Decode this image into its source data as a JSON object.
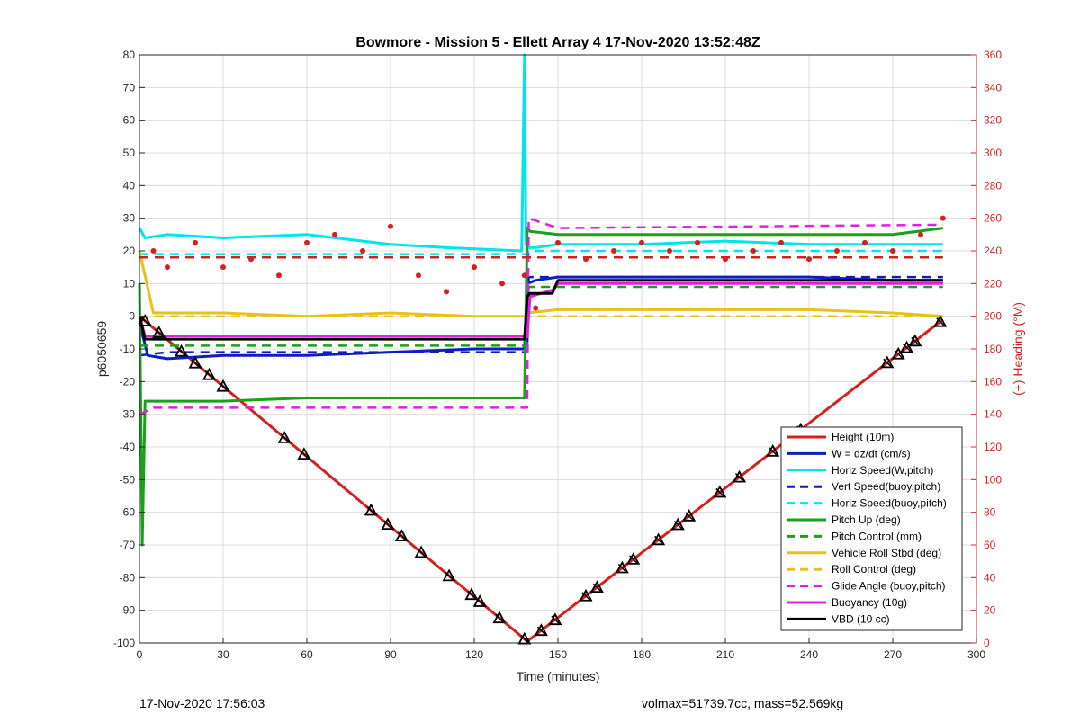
{
  "chart_data": {
    "type": "line",
    "title": "Bowmore - Mission 5 - Ellett Array 4 17-Nov-2020 13:52:48Z",
    "xlabel": "Time (minutes)",
    "ylabel_left": "p6050659",
    "ylabel_right": "(+) Heading (°M)",
    "xlim": [
      0,
      300
    ],
    "ylim_left": [
      -100,
      80
    ],
    "ylim_right": [
      0,
      360
    ],
    "xticks": [
      0,
      30,
      60,
      90,
      120,
      150,
      180,
      210,
      240,
      270,
      300
    ],
    "yticks_left": [
      80,
      70,
      60,
      50,
      40,
      30,
      20,
      10,
      0,
      -10,
      -20,
      -30,
      -40,
      -50,
      -60,
      -70,
      -80,
      -90,
      -100
    ],
    "yticks_right": [
      360,
      340,
      320,
      300,
      280,
      260,
      240,
      220,
      200,
      180,
      160,
      140,
      120,
      100,
      80,
      60,
      40,
      20,
      0
    ],
    "grid": true,
    "legend_position": "bottom-right",
    "series": [
      {
        "name": "Height (10m)",
        "color": "#d62020",
        "style": "solid",
        "x": [
          0,
          139,
          288
        ],
        "y": [
          0,
          -99.5,
          -1
        ]
      },
      {
        "name": "W = dz/dt (cm/s)",
        "color": "#0a1fc0",
        "style": "solid",
        "x": [
          0,
          3,
          10,
          30,
          60,
          90,
          120,
          138,
          139,
          142,
          150,
          180,
          210,
          240,
          270,
          288
        ],
        "y": [
          -2,
          -12,
          -13,
          -12,
          -12,
          -11,
          -10,
          -10,
          10,
          11,
          12,
          12,
          12,
          12,
          11,
          11
        ]
      },
      {
        "name": "Horiz Speed(W,pitch)",
        "color": "#00e6e6",
        "style": "solid",
        "x": [
          0,
          2,
          10,
          30,
          60,
          90,
          110,
          137,
          138,
          138.5,
          139,
          142,
          150,
          180,
          210,
          240,
          270,
          288
        ],
        "y": [
          27,
          24,
          25,
          24,
          25,
          22,
          21,
          20,
          80,
          22,
          21,
          21,
          22,
          22,
          23,
          22,
          22,
          22
        ]
      },
      {
        "name": "Vert Speed(buoy,pitch)",
        "color": "#0a1fc0",
        "style": "dashed",
        "x": [
          0,
          10,
          139,
          139.5,
          150,
          288
        ],
        "y": [
          -12,
          -11,
          -11,
          12,
          12,
          12
        ]
      },
      {
        "name": "Horiz Speed(buoy,pitch)",
        "color": "#00e6e6",
        "style": "dashed",
        "x": [
          0,
          139,
          139.5,
          288
        ],
        "y": [
          19,
          19,
          20,
          20
        ]
      },
      {
        "name": "Pitch Up (deg)",
        "color": "#1aa01a",
        "style": "solid",
        "x": [
          0,
          1,
          2,
          5,
          30,
          60,
          90,
          120,
          138,
          139,
          140,
          150,
          180,
          210,
          240,
          270,
          288
        ],
        "y": [
          10,
          -70,
          -26,
          -26,
          -26,
          -25,
          -25,
          -25,
          -25,
          27,
          26,
          25,
          25,
          25,
          25,
          25,
          27
        ]
      },
      {
        "name": "Pitch Control (mm)",
        "color": "#1aa01a",
        "style": "dashed",
        "x": [
          0,
          139,
          139.5,
          288
        ],
        "y": [
          -9,
          -9,
          9,
          9
        ]
      },
      {
        "name": "Vehicle Roll Stbd (deg)",
        "color": "#e6c31a",
        "style": "solid",
        "x": [
          0,
          5,
          10,
          30,
          60,
          90,
          120,
          138,
          139,
          150,
          180,
          210,
          240,
          270,
          288
        ],
        "y": [
          20,
          1,
          1,
          1,
          0,
          1,
          0,
          0,
          1,
          2,
          2,
          2,
          2,
          1,
          0
        ]
      },
      {
        "name": "Roll Control (deg)",
        "color": "#e6c31a",
        "style": "dashed",
        "x": [
          0,
          139,
          150,
          288
        ],
        "y": [
          0,
          0,
          0,
          0
        ]
      },
      {
        "name": "Glide Angle (buoy,pitch)",
        "color": "#e020e0",
        "style": "dashed",
        "x": [
          0,
          5,
          139,
          139.5,
          150,
          288
        ],
        "y": [
          -30,
          -28,
          -28,
          30,
          27,
          28
        ]
      },
      {
        "name": "Buoyancy (10g)",
        "color": "#e020e0",
        "style": "solid",
        "x": [
          0,
          2,
          139,
          140,
          148,
          150,
          288
        ],
        "y": [
          0,
          -6,
          -6,
          6,
          8,
          10,
          10
        ]
      },
      {
        "name": "VBD (10 cc)",
        "color": "#000000",
        "style": "solid",
        "x": [
          0,
          2,
          138,
          139,
          140,
          148,
          150,
          288
        ],
        "y": [
          0,
          -7,
          -7,
          6,
          7,
          7,
          11,
          11
        ]
      },
      {
        "name": "Heading",
        "axis": "right",
        "color": "#d62020",
        "style": "points",
        "x": [
          5,
          10,
          20,
          30,
          40,
          50,
          60,
          70,
          80,
          90,
          100,
          110,
          120,
          130,
          138,
          142,
          150,
          160,
          170,
          180,
          190,
          200,
          210,
          220,
          230,
          240,
          250,
          260,
          270,
          280,
          288
        ],
        "y": [
          240,
          230,
          245,
          230,
          235,
          225,
          245,
          250,
          240,
          255,
          225,
          215,
          230,
          220,
          225,
          205,
          245,
          235,
          240,
          245,
          240,
          245,
          235,
          240,
          245,
          235,
          240,
          245,
          240,
          250,
          260
        ]
      },
      {
        "name": "Heading mean",
        "axis": "right",
        "color": "#d62020",
        "style": "dashed",
        "x": [
          0,
          288
        ],
        "y": [
          236,
          236
        ]
      }
    ],
    "markers_x": [
      2,
      7,
      15,
      20,
      25,
      30,
      52,
      59,
      83,
      89,
      94,
      101,
      111,
      119,
      122,
      129,
      138,
      144,
      149,
      160,
      164,
      173,
      177,
      186,
      193,
      197,
      208,
      215,
      227,
      233,
      237,
      268,
      272,
      275,
      278,
      287
    ],
    "legend": [
      "Height (10m)",
      "W = dz/dt (cm/s)",
      "Horiz Speed(W,pitch)",
      "Vert Speed(buoy,pitch)",
      "Horiz Speed(buoy,pitch)",
      "Pitch Up (deg)",
      "Pitch Control (mm)",
      "Vehicle Roll Stbd (deg)",
      "Roll Control (deg)",
      "Glide Angle (buoy,pitch)",
      "Buoyancy (10g)",
      "VBD (10 cc)"
    ]
  },
  "footer": {
    "left": "17-Nov-2020 17:56:03",
    "right": "volmax=51739.7cc, mass=52.569kg"
  },
  "colors": {
    "left_axis": "#262626",
    "right_axis": "#d62020",
    "grid": "#dcdcdc"
  }
}
